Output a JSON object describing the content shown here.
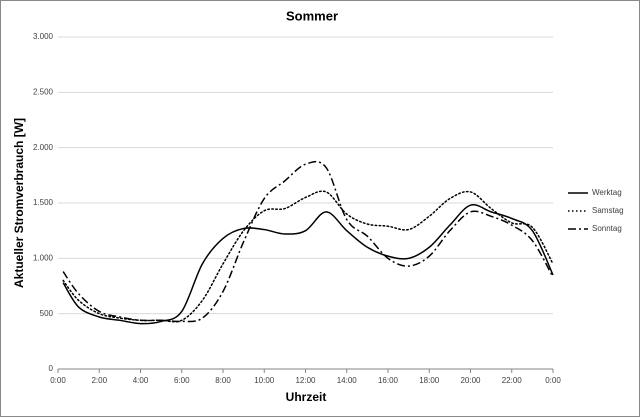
{
  "chart_data": {
    "type": "line",
    "title": "Sommer",
    "x_label": "Uhrzeit",
    "y_label": "Aktueller Stromverbrauch [W]",
    "x": [
      0.25,
      1,
      2,
      3,
      4,
      5,
      6,
      7,
      8,
      9,
      10,
      11,
      12,
      13,
      14,
      15,
      16,
      17,
      18,
      19,
      20,
      21,
      22,
      23,
      24
    ],
    "series": [
      {
        "name": "Werktag",
        "color": "#000000",
        "dash": "solid",
        "values": [
          780,
          560,
          470,
          440,
          410,
          430,
          520,
          950,
          1180,
          1270,
          1260,
          1220,
          1250,
          1420,
          1250,
          1100,
          1020,
          1000,
          1100,
          1300,
          1480,
          1420,
          1360,
          1250,
          850
        ]
      },
      {
        "name": "Samstag",
        "color": "#000000",
        "dash": "dotted",
        "values": [
          800,
          620,
          500,
          460,
          440,
          440,
          440,
          620,
          950,
          1250,
          1430,
          1450,
          1550,
          1600,
          1400,
          1310,
          1290,
          1260,
          1380,
          1540,
          1600,
          1450,
          1320,
          1280,
          950
        ]
      },
      {
        "name": "Sonntag",
        "color": "#000000",
        "dash": "dashdot",
        "values": [
          880,
          680,
          520,
          470,
          440,
          440,
          430,
          460,
          700,
          1150,
          1540,
          1700,
          1850,
          1820,
          1350,
          1200,
          1000,
          930,
          1020,
          1250,
          1420,
          1380,
          1300,
          1160,
          830
        ]
      }
    ],
    "xlim": [
      0,
      24
    ],
    "xticks": [
      {
        "value": 0,
        "label": "0:00"
      },
      {
        "value": 2,
        "label": "2:00"
      },
      {
        "value": 4,
        "label": "4:00"
      },
      {
        "value": 6,
        "label": "6:00"
      },
      {
        "value": 8,
        "label": "8:00"
      },
      {
        "value": 10,
        "label": "10:00"
      },
      {
        "value": 12,
        "label": "12:00"
      },
      {
        "value": 14,
        "label": "14:00"
      },
      {
        "value": 16,
        "label": "16:00"
      },
      {
        "value": 18,
        "label": "18:00"
      },
      {
        "value": 20,
        "label": "20:00"
      },
      {
        "value": 22,
        "label": "22:00"
      },
      {
        "value": 24,
        "label": "0:00"
      }
    ],
    "ylim": [
      0,
      3000
    ],
    "yticks": [
      0,
      {
        "value": 500,
        "label": "500"
      },
      {
        "value": 1000,
        "label": "1.000"
      },
      {
        "value": 1500,
        "label": "1.500"
      },
      {
        "value": 2000,
        "label": "2.000"
      },
      {
        "value": 2500,
        "label": "2.500"
      },
      {
        "value": 3000,
        "label": "3.000"
      }
    ],
    "grid": true,
    "legend": "right"
  }
}
